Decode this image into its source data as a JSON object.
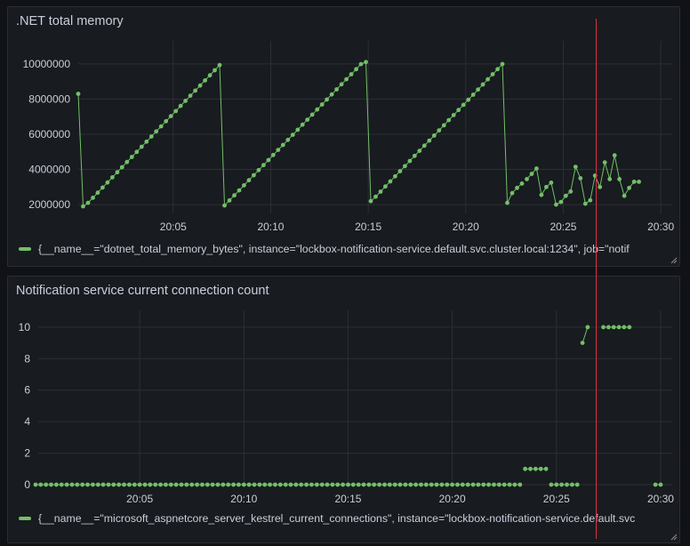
{
  "colors": {
    "series": "#73bf69",
    "cursor": "#e02f44",
    "grid": "#2c2f35",
    "text": "#ccccdc",
    "panel": "#181b1f"
  },
  "panels": [
    {
      "title": ".NET total memory",
      "legend": "{__name__=\"dotnet_total_memory_bytes\", instance=\"lockbox-notification-service.default.svc.cluster.local:1234\", job=\"notif"
    },
    {
      "title": "Notification service current connection count",
      "legend": "{__name__=\"microsoft_aspnetcore_server_kestrel_current_connections\", instance=\"lockbox-notification-service.default.svc"
    }
  ],
  "chart_data": [
    {
      "type": "line",
      "title": ".NET total memory",
      "x_unit": "minutes",
      "xlim": [
        "20:00.13",
        "20:30.13"
      ],
      "ylim": [
        1500000,
        10800000
      ],
      "y_ticks": [
        2000000,
        4000000,
        6000000,
        8000000,
        10000000
      ],
      "y_tick_labels": [
        "2000000",
        "4000000",
        "6000000",
        "8000000",
        "10000000"
      ],
      "x_ticks": [
        "20:05",
        "20:10",
        "20:15",
        "20:20",
        "20:25",
        "20:30"
      ],
      "x_tick_labels": [
        "20:05",
        "20:10",
        "20:15",
        "20:20",
        "20:25",
        "20:30"
      ],
      "grid": true,
      "legend_placement": "bottom",
      "series": [
        {
          "name": "{__name__=\"dotnet_total_memory_bytes\", instance=\"lockbox-notification-service.default.svc.cluster.local:1234\", job=\"notif",
          "segments": [
            {
              "x": [
                "20:00.13",
                "20:00.38",
                "20:00.63",
                "20:00.88",
                "20:01.13",
                "20:01.38",
                "20:01.63",
                "20:01.88",
                "20:02.13",
                "20:02.38",
                "20:02.63",
                "20:02.88",
                "20:03.13",
                "20:03.38",
                "20:03.63",
                "20:03.88",
                "20:04.13",
                "20:04.38",
                "20:04.63",
                "20:04.88",
                "20:05.13",
                "20:05.38",
                "20:05.63",
                "20:05.88",
                "20:06.13",
                "20:06.38",
                "20:06.63",
                "20:06.88",
                "20:07.13",
                "20:07.38",
                "20:07.63",
                "20:07.88",
                "20:08.13",
                "20:08.38",
                "20:08.63",
                "20:08.88",
                "20:09.13",
                "20:09.38",
                "20:09.63",
                "20:09.88",
                "20:10.13",
                "20:10.38",
                "20:10.63",
                "20:10.88",
                "20:11.13",
                "20:11.38",
                "20:11.63",
                "20:11.88",
                "20:12.13",
                "20:12.38",
                "20:12.63",
                "20:12.88",
                "20:13.13",
                "20:13.38",
                "20:13.63",
                "20:13.88",
                "20:14.13",
                "20:14.38",
                "20:14.63",
                "20:14.88",
                "20:15.13",
                "20:15.38",
                "20:15.63",
                "20:15.88",
                "20:16.13",
                "20:16.38",
                "20:16.63",
                "20:16.88",
                "20:17.13",
                "20:17.38",
                "20:17.63",
                "20:17.88",
                "20:18.13",
                "20:18.38",
                "20:18.63",
                "20:18.88",
                "20:19.13",
                "20:19.38",
                "20:19.63",
                "20:19.88",
                "20:20.13",
                "20:20.38",
                "20:20.63",
                "20:20.88",
                "20:21.13",
                "20:21.38",
                "20:21.63",
                "20:21.88",
                "20:22.13",
                "20:22.38",
                "20:22.63",
                "20:22.88"
              ],
              "y": [
                8300000,
                1900000,
                2100000,
                2390000,
                2680000,
                2970000,
                3260000,
                3550000,
                3840000,
                4130000,
                4420000,
                4710000,
                5000000,
                5290000,
                5580000,
                5870000,
                6160000,
                6450000,
                6740000,
                7030000,
                7320000,
                7610000,
                7900000,
                8190000,
                8480000,
                8770000,
                9060000,
                9350000,
                9640000,
                9930000,
                1950000,
                2237000,
                2524000,
                2811000,
                3098000,
                3385000,
                3672000,
                3959000,
                4246000,
                4533000,
                4820000,
                5107000,
                5394000,
                5681000,
                5968000,
                6255000,
                6542000,
                6829000,
                7116000,
                7403000,
                7690000,
                7977000,
                8264000,
                8551000,
                8838000,
                9125000,
                9412000,
                9699000,
                9986000,
                10100000,
                2200000,
                2450000,
                2740000,
                3030000,
                3320000,
                3610000,
                3900000,
                4190000,
                4480000,
                4770000,
                5060000,
                5350000,
                5640000,
                5930000,
                6220000,
                6510000,
                6800000,
                7090000,
                7380000,
                7670000,
                7960000,
                8250000,
                8540000,
                8830000,
                9120000,
                9410000,
                9700000,
                9990000,
                2100000,
                2650000,
                2950000,
                3200000
              ]
            },
            {
              "x": [
                "20:23.13",
                "20:23.38",
                "20:23.63",
                "20:23.88",
                "20:24.13",
                "20:24.38",
                "20:24.63",
                "20:24.88",
                "20:25.13",
                "20:25.38",
                "20:25.63",
                "20:25.88",
                "20:26.13",
                "20:26.38",
                "20:26.63",
                "20:26.88",
                "20:27.13",
                "20:27.38",
                "20:27.63",
                "20:27.88",
                "20:28.13",
                "20:28.38",
                "20:28.63",
                "20:28.88"
              ],
              "y": [
                3450000,
                3750000,
                4050000,
                2550000,
                3000000,
                3250000,
                2000000,
                2150000,
                2500000,
                2750000,
                4150000,
                3500000,
                2050000,
                2250000,
                3650000,
                3000000,
                4400000,
                3450000,
                4800000,
                3450000,
                2500000,
                2950000,
                3300000,
                3300000
              ]
            }
          ]
        }
      ]
    },
    {
      "type": "line",
      "title": "Notification service current connection count",
      "x_unit": "minutes",
      "xlim": [
        "20:00.13",
        "20:30.13"
      ],
      "ylim": [
        0,
        10.5
      ],
      "y_ticks": [
        0,
        2,
        4,
        6,
        8,
        10
      ],
      "y_tick_labels": [
        "0",
        "2",
        "4",
        "6",
        "8",
        "10"
      ],
      "x_ticks": [
        "20:05",
        "20:10",
        "20:15",
        "20:20",
        "20:25",
        "20:30"
      ],
      "x_tick_labels": [
        "20:05",
        "20:10",
        "20:15",
        "20:20",
        "20:25",
        "20:30"
      ],
      "grid": true,
      "legend_placement": "bottom",
      "series": [
        {
          "name": "{__name__=\"microsoft_aspnetcore_server_kestrel_current_connections\", instance=\"lockbox-notification-service.default.svc",
          "segments": [
            {
              "x_start": "20:00.00",
              "x_end": "20:23.25",
              "step": 0.25,
              "y": 0
            },
            {
              "x_start": "20:23.50",
              "x_end": "20:24.50",
              "step": 0.25,
              "y": 1
            },
            {
              "x_start": "20:24.75",
              "x_end": "20:26.00",
              "step": 0.25,
              "y": 0
            },
            {
              "x": [
                "20:26.25",
                "20:26.50"
              ],
              "y": [
                9,
                10
              ]
            },
            {
              "x_start": "20:27.25",
              "x_end": "20:28.50",
              "step": 0.25,
              "y": 10
            },
            {
              "x_start": "20:29.75",
              "x_end": "20:30.00",
              "step": 0.25,
              "y": 0
            }
          ]
        }
      ]
    }
  ]
}
